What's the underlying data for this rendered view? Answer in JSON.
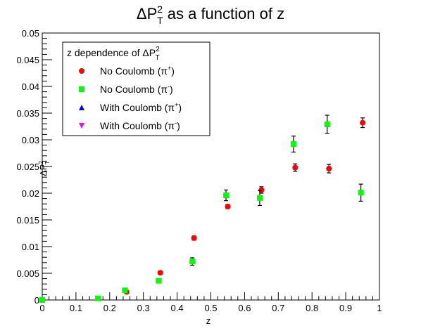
{
  "chart_data": {
    "type": "scatter",
    "title": "ΔP_T^2 as a function of z",
    "title_parts": {
      "prefix": "ΔP",
      "sup": "2",
      "sub": "T",
      "suffix": " as a function of z"
    },
    "xlabel": "z",
    "ylabel_parts": {
      "prefix": "ΔP",
      "sup": "2",
      "sub": "T"
    },
    "xlim": [
      0,
      1
    ],
    "ylim": [
      0,
      0.05
    ],
    "x_ticks": [
      "0",
      "0.1",
      "0.2",
      "0.3",
      "0.4",
      "0.5",
      "0.6",
      "0.7",
      "0.8",
      "0.9",
      "1"
    ],
    "y_ticks": [
      "0",
      "0.005",
      "0.01",
      "0.015",
      "0.02",
      "0.025",
      "0.03",
      "0.035",
      "0.04",
      "0.045",
      "0.05"
    ],
    "grid": false,
    "legend": {
      "placement": "top-left",
      "header_parts": {
        "prefix": "z dependence of ΔP",
        "sup": "2",
        "sub": "T"
      },
      "entries": [
        {
          "label_prefix": "No Coulomb (π",
          "label_sup": "+",
          "label_suffix": ")",
          "marker": "circle",
          "color": "#ff0000"
        },
        {
          "label_prefix": "No Coulomb (π",
          "label_sup": "-",
          "label_suffix": ")",
          "marker": "square",
          "color": "#00ff00"
        },
        {
          "label_prefix": "With Coulomb (π",
          "label_sup": "+",
          "label_suffix": ")",
          "marker": "triangle-up",
          "color": "#0000ff"
        },
        {
          "label_prefix": "With Coulomb (π",
          "label_sup": "-",
          "label_suffix": ")",
          "marker": "triangle-down",
          "color": "#ff00ff"
        }
      ]
    },
    "series": [
      {
        "name": "No Coulomb (π+)",
        "marker": "circle",
        "color": "#ff0000",
        "points": [
          {
            "x": 0.0,
            "y": 0.0,
            "err": 0.0
          },
          {
            "x": 0.25,
            "y": 0.0015,
            "err": 0.0002
          },
          {
            "x": 0.35,
            "y": 0.0051,
            "err": 0.0003
          },
          {
            "x": 0.45,
            "y": 0.0116,
            "err": 0.0004
          },
          {
            "x": 0.55,
            "y": 0.0175,
            "err": 0.0004
          },
          {
            "x": 0.65,
            "y": 0.0206,
            "err": 0.0006
          },
          {
            "x": 0.75,
            "y": 0.0248,
            "err": 0.0007
          },
          {
            "x": 0.85,
            "y": 0.0246,
            "err": 0.0008
          },
          {
            "x": 0.95,
            "y": 0.0332,
            "err": 0.0009
          }
        ]
      },
      {
        "name": "No Coulomb (π-)",
        "marker": "square",
        "color": "#00ff00",
        "points": [
          {
            "x": 0.0,
            "y": 0.0,
            "err": 0.0
          },
          {
            "x": 0.165,
            "y": 0.0003,
            "err": 0.0001
          },
          {
            "x": 0.245,
            "y": 0.0018,
            "err": 0.0003
          },
          {
            "x": 0.345,
            "y": 0.0036,
            "err": 0.0003
          },
          {
            "x": 0.445,
            "y": 0.0072,
            "err": 0.0007
          },
          {
            "x": 0.545,
            "y": 0.0196,
            "err": 0.001
          },
          {
            "x": 0.645,
            "y": 0.0191,
            "err": 0.0014
          },
          {
            "x": 0.745,
            "y": 0.0292,
            "err": 0.0015
          },
          {
            "x": 0.845,
            "y": 0.0329,
            "err": 0.0017
          },
          {
            "x": 0.945,
            "y": 0.0201,
            "err": 0.0016
          }
        ]
      },
      {
        "name": "With Coulomb (π+)",
        "marker": "triangle-up",
        "color": "#0000ff",
        "points": []
      },
      {
        "name": "With Coulomb (π-)",
        "marker": "triangle-down",
        "color": "#ff00ff",
        "points": []
      }
    ]
  }
}
